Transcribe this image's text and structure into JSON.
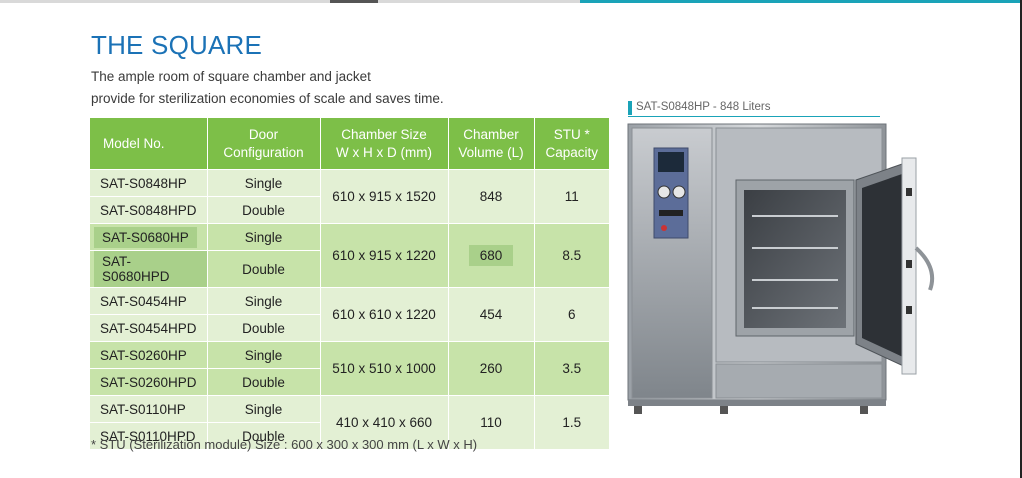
{
  "title": "THE SQUARE",
  "subtitle": {
    "line1": "The ample room of square chamber and jacket",
    "line2": "provide for sterilization economies of scale and saves time."
  },
  "table": {
    "headers": {
      "model": "Model No.",
      "door_1": "Door",
      "door_2": "Configuration",
      "size_1": "Chamber Size",
      "size_2": "W x H x D (mm)",
      "volume_1": "Chamber",
      "volume_2": "Volume (L)",
      "stu_1": "STU *",
      "stu_2": "Capacity"
    },
    "groups": [
      {
        "models": [
          "SAT-S0848HP",
          "SAT-S0848HPD"
        ],
        "doors": [
          "Single",
          "Double"
        ],
        "size": "610 x 915 x 1520",
        "volume": "848",
        "stu": "11"
      },
      {
        "models": [
          "SAT-S0680HP",
          "SAT-S0680HPD"
        ],
        "doors": [
          "Single",
          "Double"
        ],
        "size": "610 x 915 x 1220",
        "volume": "680",
        "stu": "8.5"
      },
      {
        "models": [
          "SAT-S0454HP",
          "SAT-S0454HPD"
        ],
        "doors": [
          "Single",
          "Double"
        ],
        "size": "610 x 610 x 1220",
        "volume": "454",
        "stu": "6"
      },
      {
        "models": [
          "SAT-S0260HP",
          "SAT-S0260HPD"
        ],
        "doors": [
          "Single",
          "Double"
        ],
        "size": "510 x 510 x 1000",
        "volume": "260",
        "stu": "3.5"
      },
      {
        "models": [
          "SAT-S0110HP",
          "SAT-S0110HPD"
        ],
        "doors": [
          "Single",
          "Double"
        ],
        "size": "410 x 410 x 660",
        "volume": "110",
        "stu": "1.5"
      }
    ]
  },
  "footnote": "* STU (Sterilization module) Size : 600 x 300 x 300 mm (L x W x H)",
  "photo_caption": "SAT-S0848HP - 848 Liters",
  "colors": {
    "title": "#1b72b6",
    "header_green": "#7dbf48",
    "row_light": "#e3f0d4",
    "row_mid": "#c7e3a9",
    "accent_teal": "#1aa3b8"
  }
}
